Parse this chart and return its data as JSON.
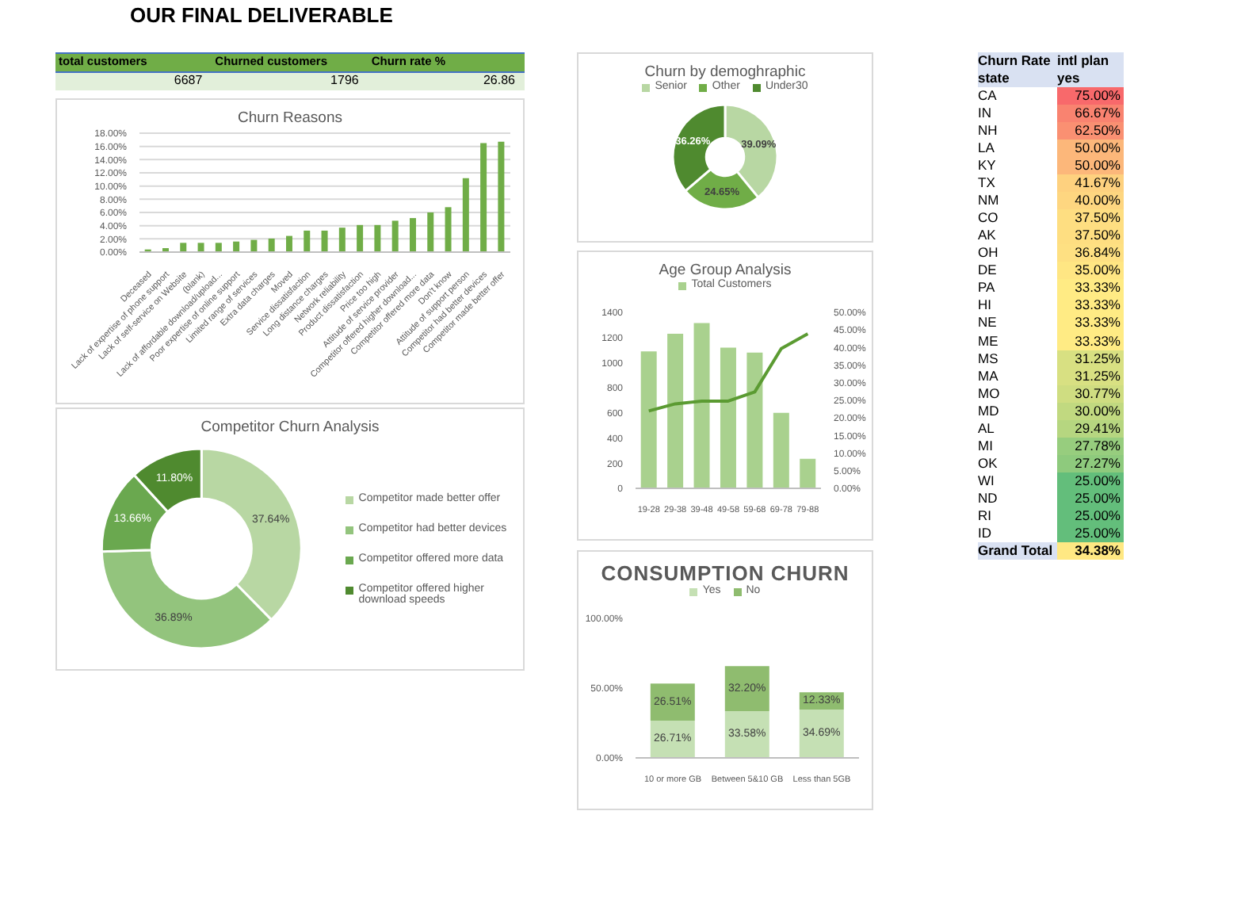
{
  "chart_data": [
    {
      "type": "other",
      "title": "OUR FINAL DELIVERABLE",
      "annotations": [
        "total customers",
        "Churned customers",
        "Churn rate %",
        "6687",
        "1796",
        "26.86"
      ]
    },
    {
      "type": "bar",
      "title": "Churn Reasons",
      "categories": [
        "Deceased",
        "Lack of expertise of phone support",
        "Lack of self-service on Website",
        "(blank)",
        "Lack of affordable download/upload...",
        "Poor expertise of online support",
        "Limited range of services",
        "Extra data charges",
        "Moved",
        "Service dissatisfaction",
        "Long distance charges",
        "Network reliability",
        "Product dissatisfaction",
        "Price too high",
        "Attitude of service provider",
        "Competitor offered higher download...",
        "Competitor offered more data",
        "Don't know",
        "Attitude of support person",
        "Competitor had better devices",
        "Competitor made better offer"
      ],
      "values": [
        0.4,
        0.6,
        1.4,
        1.4,
        1.4,
        1.6,
        1.85,
        2.05,
        2.45,
        3.25,
        3.25,
        3.7,
        4.1,
        4.1,
        4.75,
        5.15,
        6.0,
        6.8,
        11.2,
        16.5,
        16.7
      ],
      "color": "#70ad47",
      "ylim": [
        0,
        18
      ],
      "yticks": [
        {
          "value": 0,
          "label": "0.00%"
        },
        {
          "value": 2,
          "label": "2.00%"
        },
        {
          "value": 4,
          "label": "4.00%"
        },
        {
          "value": 6,
          "label": "6.00%"
        },
        {
          "value": 8,
          "label": "8.00%"
        },
        {
          "value": 10,
          "label": "10.00%"
        },
        {
          "value": 12,
          "label": "12.00%"
        },
        {
          "value": 14,
          "label": "14.00%"
        },
        {
          "value": 16,
          "label": "16.00%"
        },
        {
          "value": 18,
          "label": "18.00%"
        }
      ],
      "grid": "y"
    },
    {
      "type": "donut",
      "title": "Competitor Churn Analysis",
      "categories": [
        "Competitor made better offer",
        "Competitor had better devices",
        "Competitor offered more data",
        "Competitor offered higher download speeds"
      ],
      "values": [
        37.64,
        36.89,
        13.66,
        11.8
      ],
      "value_labels": [
        "37.64%",
        "36.89%",
        "13.66%",
        "11.80%"
      ],
      "colors": [
        "#b8d7a3",
        "#93c47d",
        "#6aa84f",
        "#4f8a2f"
      ],
      "legend": "right"
    },
    {
      "type": "donut",
      "title": "Churn by demoghraphic",
      "categories": [
        "Senior",
        "Other",
        "Under30"
      ],
      "values": [
        39.09,
        24.65,
        36.26
      ],
      "value_labels": [
        "39.09%",
        "24.65%",
        "36.26%"
      ],
      "colors": [
        "#b8d7a3",
        "#70ad47",
        "#4f8a2f"
      ],
      "legend": "top"
    },
    {
      "type": "bar",
      "title": "Age Group Analysis",
      "categories": [
        "19-28",
        "29-38",
        "39-48",
        "49-58",
        "59-68",
        "69-78",
        "79-88"
      ],
      "series": [
        {
          "name": "Total Customers",
          "color": "#a9d18e",
          "values": [
            1090,
            1230,
            1315,
            1120,
            1080,
            600,
            235
          ]
        },
        {
          "type": "line",
          "axis": "y2",
          "color": "#5b9b32",
          "values": [
            22.0,
            24.0,
            24.8,
            24.8,
            27.4,
            39.7,
            43.9
          ]
        }
      ],
      "ylim": [
        0,
        1400
      ],
      "yticks": [
        0,
        200,
        400,
        600,
        800,
        1000,
        1200,
        1400
      ],
      "y2lim": [
        0,
        50
      ],
      "y2ticks": [
        {
          "value": 0,
          "label": "0.00%"
        },
        {
          "value": 5,
          "label": "5.00%"
        },
        {
          "value": 10,
          "label": "10.00%"
        },
        {
          "value": 15,
          "label": "15.00%"
        },
        {
          "value": 20,
          "label": "20.00%"
        },
        {
          "value": 25,
          "label": "25.00%"
        },
        {
          "value": 30,
          "label": "30.00%"
        },
        {
          "value": 35,
          "label": "35.00%"
        },
        {
          "value": 40,
          "label": "40.00%"
        },
        {
          "value": 45,
          "label": "45.00%"
        },
        {
          "value": 50,
          "label": "50.00%"
        }
      ],
      "legend": "top",
      "marker": "none"
    },
    {
      "type": "bar",
      "title": "CONSUMPTION CHURN",
      "categories": [
        "10 or more GB",
        "Between 5&10 GB",
        "Less than 5GB"
      ],
      "stacked": true,
      "series": [
        {
          "name": "Yes",
          "color": "#c5e0b4",
          "values": [
            26.71,
            33.58,
            34.69
          ],
          "value_labels": [
            "26.71%",
            "33.58%",
            "34.69%"
          ]
        },
        {
          "name": "No",
          "color": "#8fbc6f",
          "values": [
            26.51,
            32.2,
            12.33
          ],
          "value_labels": [
            "26.51%",
            "32.20%",
            "12.33%"
          ]
        }
      ],
      "ylim": [
        0,
        100
      ],
      "yticks": [
        {
          "value": 0,
          "label": "0.00%"
        },
        {
          "value": 50,
          "label": "50.00%"
        },
        {
          "value": 100,
          "label": "100.00%"
        }
      ],
      "legend": "top"
    },
    {
      "type": "heatmap",
      "title": "Churn Rate",
      "legend_title": "intl plan",
      "ylabel": "state",
      "categories": [
        "yes"
      ],
      "y_categories": [
        "CA",
        "IN",
        "NH",
        "LA",
        "KY",
        "TX",
        "NM",
        "CO",
        "AK",
        "OH",
        "DE",
        "PA",
        "HI",
        "NE",
        "ME",
        "MS",
        "MA",
        "MO",
        "MD",
        "AL",
        "MI",
        "OK",
        "WI",
        "ND",
        "RI",
        "ID",
        "Grand Total"
      ],
      "cells": [
        [
          75.0
        ],
        [
          66.67
        ],
        [
          62.5
        ],
        [
          50.0
        ],
        [
          50.0
        ],
        [
          41.67
        ],
        [
          40.0
        ],
        [
          37.5
        ],
        [
          37.5
        ],
        [
          36.84
        ],
        [
          35.0
        ],
        [
          33.33
        ],
        [
          33.33
        ],
        [
          33.33
        ],
        [
          33.33
        ],
        [
          31.25
        ],
        [
          31.25
        ],
        [
          30.77
        ],
        [
          30.0
        ],
        [
          29.41
        ],
        [
          27.78
        ],
        [
          27.27
        ],
        [
          25.0
        ],
        [
          25.0
        ],
        [
          25.0
        ],
        [
          25.0
        ],
        [
          34.38
        ]
      ],
      "cell_labels": [
        [
          "75.00%"
        ],
        [
          "66.67%"
        ],
        [
          "62.50%"
        ],
        [
          "50.00%"
        ],
        [
          "50.00%"
        ],
        [
          "41.67%"
        ],
        [
          "40.00%"
        ],
        [
          "37.50%"
        ],
        [
          "37.50%"
        ],
        [
          "36.84%"
        ],
        [
          "35.00%"
        ],
        [
          "33.33%"
        ],
        [
          "33.33%"
        ],
        [
          "33.33%"
        ],
        [
          "33.33%"
        ],
        [
          "31.25%"
        ],
        [
          "31.25%"
        ],
        [
          "30.77%"
        ],
        [
          "30.00%"
        ],
        [
          "29.41%"
        ],
        [
          "27.78%"
        ],
        [
          "27.27%"
        ],
        [
          "25.00%"
        ],
        [
          "25.00%"
        ],
        [
          "25.00%"
        ],
        [
          "25.00%"
        ],
        [
          "34.38%"
        ]
      ]
    }
  ]
}
